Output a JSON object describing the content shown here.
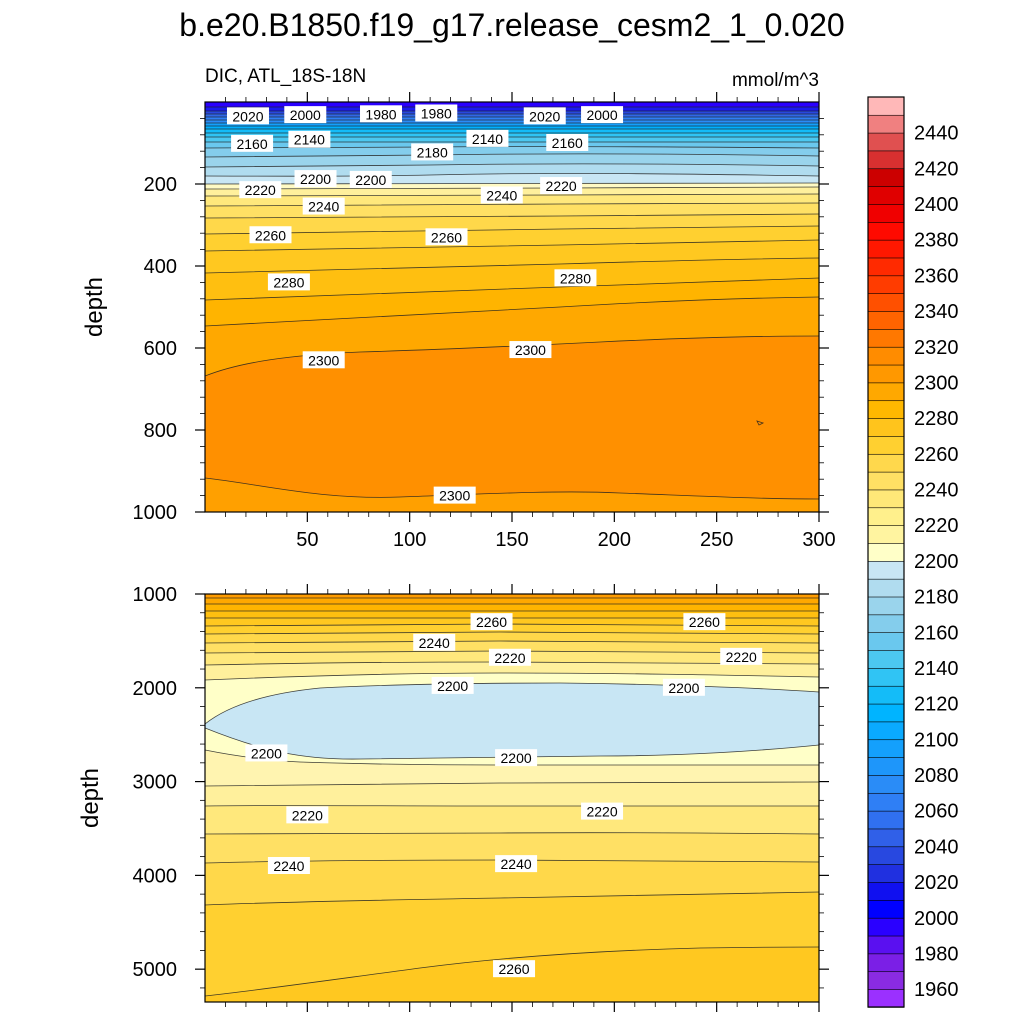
{
  "figure": {
    "title": "b.e20.B1850.f19_g17.release_cesm2_1_0.020",
    "subtitle_left": "DIC, ATL_18S-18N",
    "subtitle_right": "mmol/m^3"
  },
  "chart_data": {
    "type": "contour",
    "variable": "DIC",
    "region": "ATL_18S-18N",
    "units": "mmol/m^3",
    "colorbar": {
      "levels": [
        1950,
        1960,
        1970,
        1980,
        1990,
        2000,
        2010,
        2020,
        2030,
        2040,
        2050,
        2060,
        2070,
        2080,
        2090,
        2100,
        2110,
        2120,
        2130,
        2140,
        2150,
        2160,
        2170,
        2180,
        2190,
        2200,
        2210,
        2220,
        2230,
        2240,
        2250,
        2260,
        2270,
        2280,
        2290,
        2300,
        2310,
        2320,
        2330,
        2340,
        2350,
        2360,
        2370,
        2380,
        2390,
        2400,
        2410,
        2420,
        2430,
        2440,
        2450
      ],
      "tick_labels": [
        "1960",
        "1980",
        "2000",
        "2020",
        "2040",
        "2060",
        "2080",
        "2100",
        "2120",
        "2140",
        "2160",
        "2180",
        "2200",
        "2220",
        "2240",
        "2260",
        "2280",
        "2300",
        "2320",
        "2340",
        "2360",
        "2380",
        "2400",
        "2420",
        "2440"
      ],
      "colors": [
        "#9b30ff",
        "#8a2be2",
        "#7b1fe6",
        "#5a10f0",
        "#2a00ff",
        "#0000ff",
        "#1010f0",
        "#2030e0",
        "#2848e0",
        "#3060e8",
        "#3070f0",
        "#2f7ff5",
        "#2a8cf7",
        "#1e96fa",
        "#14a0fc",
        "#0aaaff",
        "#00b4ff",
        "#14bcf8",
        "#30c4f4",
        "#4cc8f0",
        "#6ac8ee",
        "#84cdec",
        "#9ad4ec",
        "#b0dcef",
        "#c8e6f4",
        "#ffffc8",
        "#fff4a0",
        "#fff08c",
        "#ffe878",
        "#ffe064",
        "#ffd84c",
        "#ffd030",
        "#ffc41c",
        "#ffb800",
        "#ffa800",
        "#ff9800",
        "#ff8c00",
        "#ff7800",
        "#ff6400",
        "#ff5000",
        "#ff3c00",
        "#ff2a00",
        "#ff1800",
        "#ff0a00",
        "#f00000",
        "#e00000",
        "#cc0000",
        "#d83030",
        "#e05050",
        "#f08080",
        "#ffb8b8"
      ]
    },
    "panels": [
      {
        "name": "upper",
        "ylabel": "depth",
        "xlim": [
          0,
          300
        ],
        "ylim": [
          1000,
          0
        ],
        "x_ticks": [
          50,
          100,
          150,
          200,
          250,
          300
        ],
        "y_ticks": [
          200,
          400,
          600,
          800,
          1000
        ],
        "contour_labels": [
          {
            "x": 21,
            "y": 35,
            "text": "2020"
          },
          {
            "x": 49,
            "y": 32,
            "text": "2000"
          },
          {
            "x": 86,
            "y": 30,
            "text": "1980"
          },
          {
            "x": 113,
            "y": 28,
            "text": "1980"
          },
          {
            "x": 166,
            "y": 35,
            "text": "2020"
          },
          {
            "x": 194,
            "y": 32,
            "text": "2000"
          },
          {
            "x": 23,
            "y": 102,
            "text": "2160"
          },
          {
            "x": 51,
            "y": 92,
            "text": "2140"
          },
          {
            "x": 111,
            "y": 123,
            "text": "2180"
          },
          {
            "x": 138,
            "y": 90,
            "text": "2140"
          },
          {
            "x": 177,
            "y": 100,
            "text": "2160"
          },
          {
            "x": 54,
            "y": 188,
            "text": "2200"
          },
          {
            "x": 81,
            "y": 190,
            "text": "2200"
          },
          {
            "x": 27,
            "y": 215,
            "text": "2220"
          },
          {
            "x": 58,
            "y": 255,
            "text": "2240"
          },
          {
            "x": 145,
            "y": 228,
            "text": "2240"
          },
          {
            "x": 174,
            "y": 205,
            "text": "2220"
          },
          {
            "x": 32,
            "y": 325,
            "text": "2260"
          },
          {
            "x": 118,
            "y": 330,
            "text": "2260"
          },
          {
            "x": 41,
            "y": 440,
            "text": "2280"
          },
          {
            "x": 181,
            "y": 430,
            "text": "2280"
          },
          {
            "x": 58,
            "y": 630,
            "text": "2300"
          },
          {
            "x": 159,
            "y": 605,
            "text": "2300"
          },
          {
            "x": 122,
            "y": 960,
            "text": "2300"
          }
        ]
      },
      {
        "name": "lower",
        "ylabel": "depth",
        "xlim": [
          0,
          300
        ],
        "ylim": [
          5350,
          1000
        ],
        "y_ticks": [
          1000,
          2000,
          3000,
          4000,
          5000
        ],
        "contour_labels": [
          {
            "x": 112,
            "y": 1520,
            "text": "2240"
          },
          {
            "x": 140,
            "y": 1300,
            "text": "2260"
          },
          {
            "x": 149,
            "y": 1680,
            "text": "2220"
          },
          {
            "x": 244,
            "y": 1300,
            "text": "2260"
          },
          {
            "x": 262,
            "y": 1670,
            "text": "2220"
          },
          {
            "x": 121,
            "y": 1980,
            "text": "2200"
          },
          {
            "x": 234,
            "y": 2000,
            "text": "2200"
          },
          {
            "x": 30,
            "y": 2700,
            "text": "2200"
          },
          {
            "x": 152,
            "y": 2750,
            "text": "2200"
          },
          {
            "x": 50,
            "y": 3360,
            "text": "2220"
          },
          {
            "x": 194,
            "y": 3320,
            "text": "2220"
          },
          {
            "x": 41,
            "y": 3900,
            "text": "2240"
          },
          {
            "x": 152,
            "y": 3880,
            "text": "2240"
          },
          {
            "x": 151,
            "y": 5000,
            "text": "2260"
          }
        ]
      }
    ]
  }
}
